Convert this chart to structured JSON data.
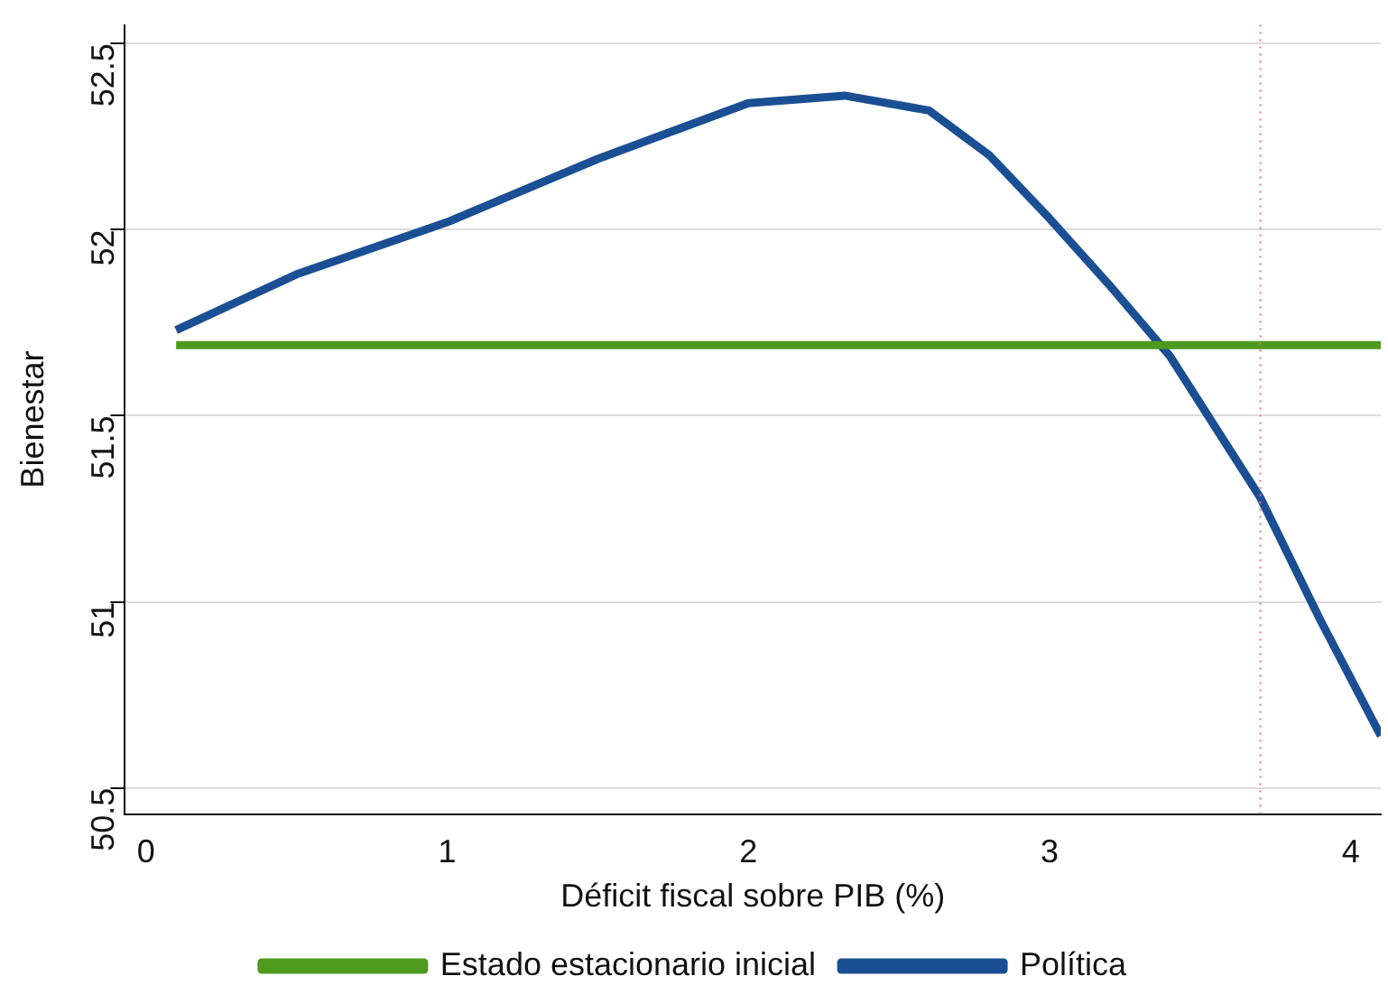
{
  "chart_data": {
    "type": "line",
    "xlabel": "Déficit fiscal sobre PIB (%)",
    "ylabel": "Bienestar",
    "xlim": [
      -0.07,
      4.1
    ],
    "xticks": [
      0,
      1,
      2,
      3,
      4
    ],
    "ylim": [
      50.43,
      52.55
    ],
    "yticks": [
      50.5,
      51,
      51.5,
      52,
      52.5
    ],
    "grid": "y",
    "legend": "bottom",
    "marker": "none",
    "line_style": "solid",
    "ref_lines": [
      {
        "axis": "x",
        "value": 3.7,
        "color": "#e07090",
        "line_style": "dotted"
      }
    ],
    "series": [
      {
        "name": "Estado estacionario inicial",
        "color": "#4d9a1f",
        "x": [
          0.1,
          4.1
        ],
        "values": [
          51.69,
          51.69
        ]
      },
      {
        "name": "Política",
        "color": "#1a4f94",
        "x": [
          0.1,
          0.5,
          1,
          1.5,
          2,
          2.32,
          2.6,
          2.8,
          3,
          3.2,
          3.4,
          3.7,
          3.9,
          4.1
        ],
        "values": [
          51.73,
          51.88,
          52.02,
          52.19,
          52.34,
          52.36,
          52.32,
          52.2,
          52.03,
          51.85,
          51.66,
          51.28,
          50.95,
          50.64
        ]
      }
    ]
  }
}
